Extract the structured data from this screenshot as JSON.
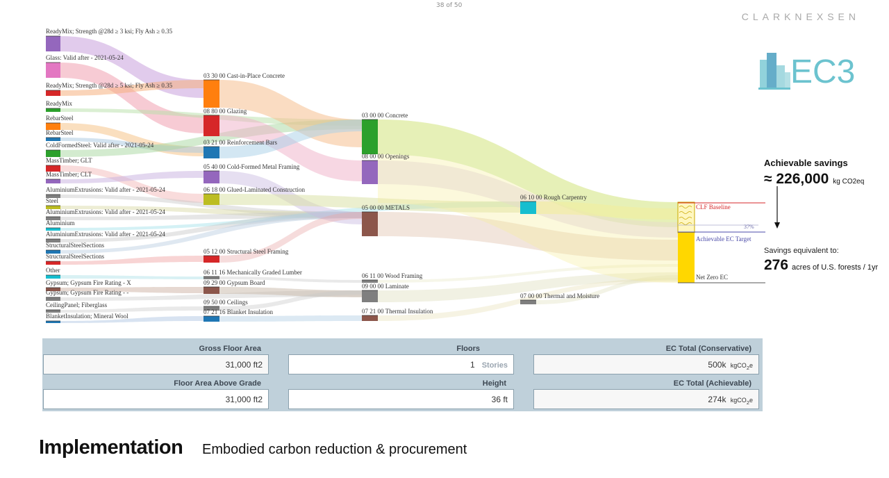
{
  "page_number": "38 of 50",
  "brand": "CLARKNEXSEN",
  "logo_text": "EC3",
  "sankey": {
    "materials": [
      {
        "label": "ReadyMix; Strength @28d ≥ 3 ksi; Fly Ash ≥ 0.35",
        "color": "#9467bd"
      },
      {
        "label": "Glass: Valid after - 2021-05-24",
        "color": "#e377c2"
      },
      {
        "label": "ReadyMix; Strength @28d ≥ 5 ksi; Fly Ash ≥ 0.35",
        "color": "#d62728"
      },
      {
        "label": "ReadyMix",
        "color": "#2ca02c"
      },
      {
        "label": "RebarSteel",
        "color": "#ff7f0e"
      },
      {
        "label": "RebarSteel",
        "color": "#1f77b4"
      },
      {
        "label": "ColdFormedSteel: Valid after - 2021-05-24",
        "color": "#2ca02c"
      },
      {
        "label": "MassTimber; GLT",
        "color": "#d62728"
      },
      {
        "label": "MassTimber; CLT",
        "color": "#9467bd"
      },
      {
        "label": "AluminiumExtrusions: Valid after - 2021-05-24",
        "color": "#7f7f7f"
      },
      {
        "label": "Steel",
        "color": "#bcbd22"
      },
      {
        "label": "AluminiumExtrusions: Valid after - 2021-05-24",
        "color": "#7f7f7f"
      },
      {
        "label": "Aluminium",
        "color": "#17becf"
      },
      {
        "label": "AluminiumExtrusions: Valid after - 2021-05-24",
        "color": "#7f7f7f"
      },
      {
        "label": "StructuralSteelSections",
        "color": "#1f77b4"
      },
      {
        "label": "StructuralSteelSections",
        "color": "#d62728"
      },
      {
        "label": "Other",
        "color": "#17becf"
      },
      {
        "label": "Gypsum; Gypsum Fire Rating - X",
        "color": "#8c564b"
      },
      {
        "label": "Gypsum; Gypsum Fire Rating - -",
        "color": "#7f7f7f"
      },
      {
        "label": "CeilingPanel; Fiberglass",
        "color": "#7f7f7f"
      },
      {
        "label": "BlanketInsulation; Mineral Wool",
        "color": "#1f77b4"
      }
    ],
    "sections": [
      {
        "label": "03 30 00 Cast-in-Place Concrete",
        "color": "#ff7f0e"
      },
      {
        "label": "08 80 00 Glazing",
        "color": "#d62728"
      },
      {
        "label": "03 21 00 Reinforcement Bars",
        "color": "#1f77b4"
      },
      {
        "label": "05 40 00 Cold-Formed Metal Framing",
        "color": "#9467bd"
      },
      {
        "label": "06 18 00 Glued-Laminated Construction",
        "color": "#bcbd22"
      },
      {
        "label": "05 12 00 Structural Steel Framing",
        "color": "#d62728"
      },
      {
        "label": "06 11 16 Mechanically Graded Lumber",
        "color": "#7f7f7f"
      },
      {
        "label": "09 29 00 Gypsum Board",
        "color": "#8c564b"
      },
      {
        "label": "09 50 00 Ceilings",
        "color": "#7f7f7f"
      },
      {
        "label": "07 21 16 Blanket Insulation",
        "color": "#1f77b4"
      }
    ],
    "divisions": [
      {
        "label": "03 00 00 Concrete",
        "color": "#2ca02c"
      },
      {
        "label": "08 00 00 Openings",
        "color": "#9467bd"
      },
      {
        "label": "05 00 00 METALS",
        "color": "#8c564b"
      },
      {
        "label": "06 11 00 Wood Framing",
        "color": "#7f7f7f"
      },
      {
        "label": "09 00 00 Laminate",
        "color": "#7f7f7f"
      },
      {
        "label": "07 21 00 Thermal Insulation",
        "color": "#8c564b"
      }
    ],
    "groups": [
      {
        "label": "06 10 00 Rough Carpentry",
        "color": "#17becf"
      },
      {
        "label": "07 00 00 Thermal and Moisture",
        "color": "#7f7f7f"
      }
    ],
    "target": {
      "clf_baseline": "CLF Baseline",
      "achievable_ec_target": "Achievable EC Target",
      "net_zero_ec": "Net Zero EC",
      "percent": "37%",
      "bar_color": "#ffd700",
      "baseline_color": "#d62728",
      "target_color": "#4a4aa8"
    }
  },
  "savings": {
    "title": "Achievable savings",
    "value": "≈ 226,000",
    "unit": "kg CO2eq",
    "equivalent_title": "Savings equivalent to:",
    "acres": "276",
    "acres_unit": "acres of U.S. forests / 1yr"
  },
  "project": {
    "gross_floor_area": {
      "label": "Gross Floor Area",
      "value": "31,000 ft2"
    },
    "floors": {
      "label": "Floors",
      "value": "1",
      "suffix": "Stories"
    },
    "ec_total_conservative": {
      "label": "EC Total (Conservative)",
      "value": "500k",
      "unit": "kgCO",
      "unit_sub": "2",
      "unit_tail": "e"
    },
    "floor_area_above_grade": {
      "label": "Floor Area Above Grade",
      "value": "31,000 ft2"
    },
    "height": {
      "label": "Height",
      "value": "36 ft"
    },
    "ec_total_achievable": {
      "label": "EC Total (Achievable)",
      "value": "274k",
      "unit": "kgCO",
      "unit_sub": "2",
      "unit_tail": "e"
    }
  },
  "footer": {
    "title": "Implementation",
    "subtitle": "Embodied carbon reduction & procurement"
  }
}
